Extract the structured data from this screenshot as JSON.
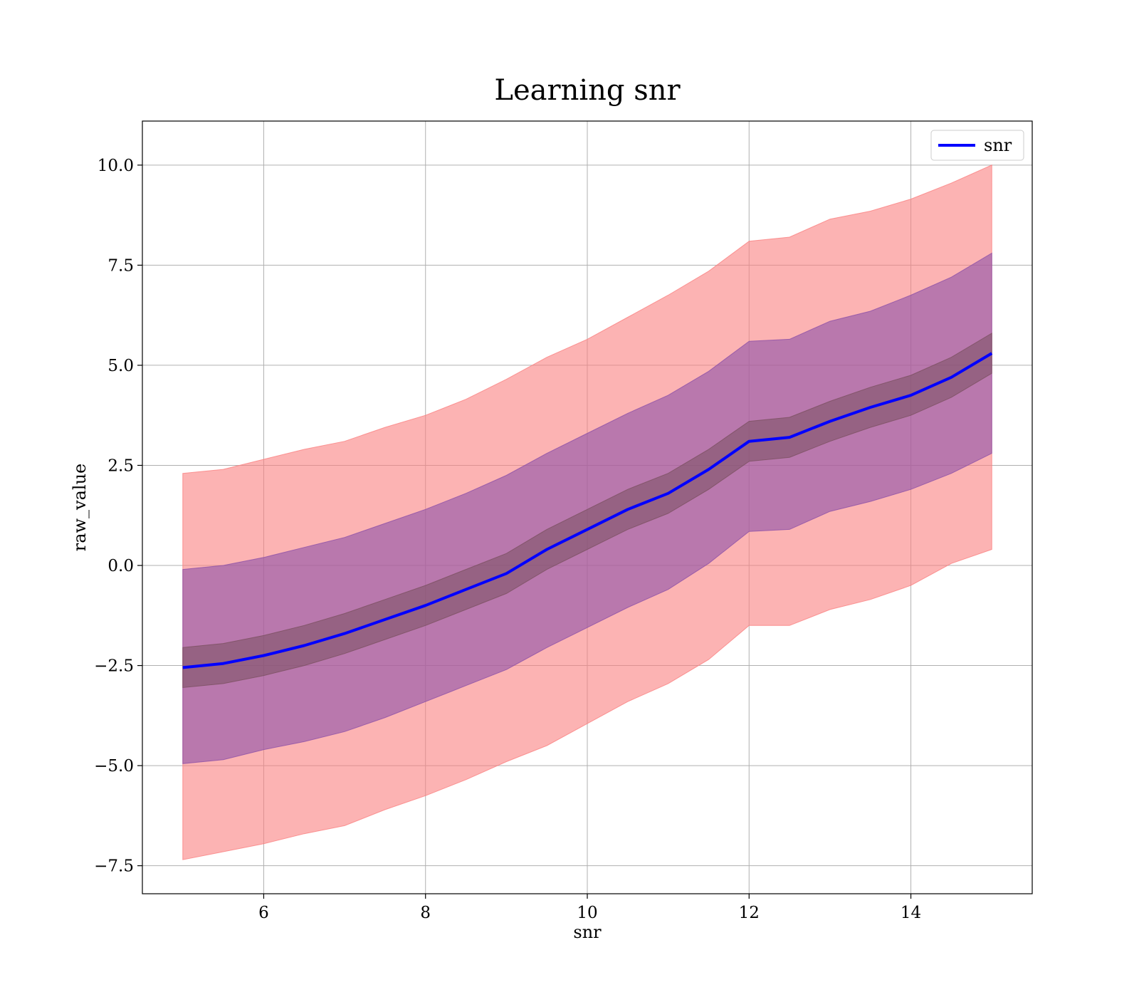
{
  "chart_data": {
    "type": "area",
    "title": "Learning snr",
    "xlabel": "snr",
    "ylabel": "raw_value",
    "xlim": [
      4.5,
      15.5
    ],
    "ylim": [
      -8.2,
      11.1
    ],
    "x_ticks": [
      6,
      8,
      10,
      12,
      14
    ],
    "y_ticks": [
      -7.5,
      -5.0,
      -2.5,
      0.0,
      2.5,
      5.0,
      7.5,
      10.0
    ],
    "x_tick_labels": [
      "6",
      "8",
      "10",
      "12",
      "14"
    ],
    "y_tick_labels": [
      "−7.5",
      "−5.0",
      "−2.5",
      "0.0",
      "2.5",
      "5.0",
      "7.5",
      "10.0"
    ],
    "grid": true,
    "legend_position": "top-right",
    "series": [
      {
        "name": "snr",
        "color": "#0000ff",
        "x": [
          5.0,
          5.5,
          6.0,
          6.5,
          7.0,
          7.5,
          8.0,
          8.5,
          9.0,
          9.5,
          10.0,
          10.5,
          11.0,
          11.5,
          12.0,
          12.5,
          13.0,
          13.5,
          14.0,
          14.5,
          15.0
        ],
        "y": [
          -2.55,
          -2.45,
          -2.25,
          -2.0,
          -1.7,
          -1.35,
          -1.0,
          -0.6,
          -0.2,
          0.4,
          0.9,
          1.4,
          1.8,
          2.4,
          3.1,
          3.2,
          3.6,
          3.95,
          4.25,
          4.7,
          5.3
        ]
      }
    ],
    "bands": [
      {
        "name": "outer",
        "color": "#fa8080",
        "lower": [
          -7.35,
          -7.15,
          -6.95,
          -6.7,
          -6.5,
          -6.1,
          -5.75,
          -5.35,
          -4.9,
          -4.5,
          -3.95,
          -3.4,
          -2.95,
          -2.35,
          -1.5,
          -1.5,
          -1.1,
          -0.85,
          -0.5,
          0.05,
          0.4
        ],
        "upper": [
          2.3,
          2.4,
          2.65,
          2.9,
          3.1,
          3.45,
          3.75,
          4.15,
          4.65,
          5.2,
          5.65,
          6.2,
          6.75,
          7.35,
          8.1,
          8.2,
          8.65,
          8.85,
          9.15,
          9.55,
          10.0
        ]
      },
      {
        "name": "middle",
        "color": "#8c50a8",
        "lower": [
          -4.95,
          -4.85,
          -4.6,
          -4.4,
          -4.15,
          -3.8,
          -3.4,
          -3.0,
          -2.6,
          -2.05,
          -1.55,
          -1.05,
          -0.6,
          0.05,
          0.85,
          0.9,
          1.35,
          1.6,
          1.9,
          2.3,
          2.8
        ],
        "upper": [
          -0.1,
          0.0,
          0.2,
          0.45,
          0.7,
          1.05,
          1.4,
          1.8,
          2.25,
          2.8,
          3.3,
          3.8,
          4.25,
          4.85,
          5.6,
          5.65,
          6.1,
          6.35,
          6.75,
          7.2,
          7.8
        ]
      },
      {
        "name": "inner",
        "color": "#7a5060",
        "lower": [
          -3.05,
          -2.95,
          -2.75,
          -2.5,
          -2.2,
          -1.85,
          -1.5,
          -1.1,
          -0.7,
          -0.1,
          0.4,
          0.9,
          1.3,
          1.9,
          2.6,
          2.7,
          3.1,
          3.45,
          3.75,
          4.2,
          4.8
        ],
        "upper": [
          -2.05,
          -1.95,
          -1.75,
          -1.5,
          -1.2,
          -0.85,
          -0.5,
          -0.1,
          0.3,
          0.9,
          1.4,
          1.9,
          2.3,
          2.9,
          3.6,
          3.7,
          4.1,
          4.45,
          4.75,
          5.2,
          5.8
        ]
      }
    ]
  }
}
